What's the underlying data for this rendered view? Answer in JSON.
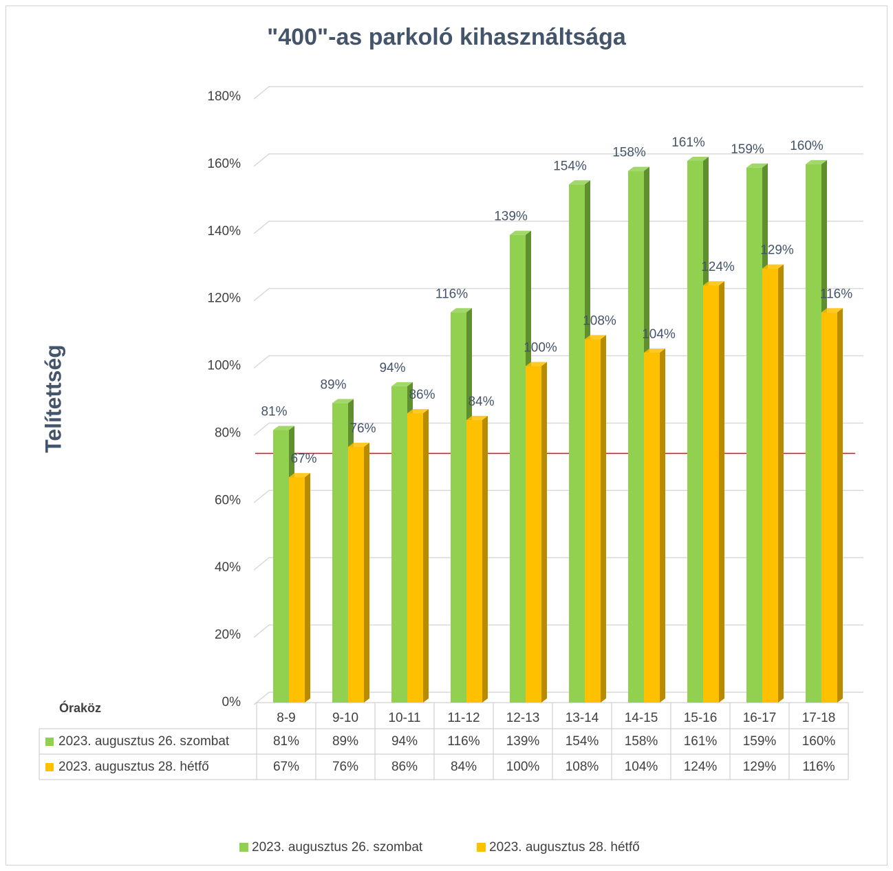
{
  "chart_data": {
    "type": "bar",
    "title": "\"400\"-as parkoló kihasználtsága",
    "y_label": "Telítettség",
    "table_header": "Óraköz",
    "categories": [
      "8-9",
      "9-10",
      "10-11",
      "11-12",
      "12-13",
      "13-14",
      "14-15",
      "15-16",
      "16-17",
      "17-18"
    ],
    "series": [
      {
        "name": "2023. augusztus 26. szombat",
        "color": "#92d050",
        "side_color": "#5f8f2e",
        "values": [
          81,
          89,
          94,
          116,
          139,
          154,
          158,
          161,
          159,
          160
        ],
        "value_labels": [
          "81%",
          "89%",
          "94%",
          "116%",
          "139%",
          "154%",
          "158%",
          "161%",
          "159%",
          "160%"
        ]
      },
      {
        "name": "2023. augusztus 28. hétfő",
        "color": "#ffc000",
        "side_color": "#b98b00",
        "values": [
          67,
          76,
          86,
          84,
          100,
          108,
          104,
          124,
          129,
          116
        ],
        "value_labels": [
          "67%",
          "76%",
          "86%",
          "84%",
          "100%",
          "108%",
          "104%",
          "124%",
          "129%",
          "116%"
        ]
      }
    ],
    "ylim": [
      0,
      180
    ],
    "yticks": [
      {
        "value": 0,
        "label": "0%"
      },
      {
        "value": 20,
        "label": "20%"
      },
      {
        "value": 40,
        "label": "40%"
      },
      {
        "value": 60,
        "label": "60%"
      },
      {
        "value": 80,
        "label": "80%"
      },
      {
        "value": 100,
        "label": "100%"
      },
      {
        "value": 120,
        "label": "120%"
      },
      {
        "value": 140,
        "label": "140%"
      },
      {
        "value": 160,
        "label": "160%"
      },
      {
        "value": 180,
        "label": "180%"
      }
    ],
    "grid": true,
    "reference_line": {
      "value": 71,
      "color": "#ff0000"
    },
    "data_table": true,
    "legend": "bottom"
  }
}
